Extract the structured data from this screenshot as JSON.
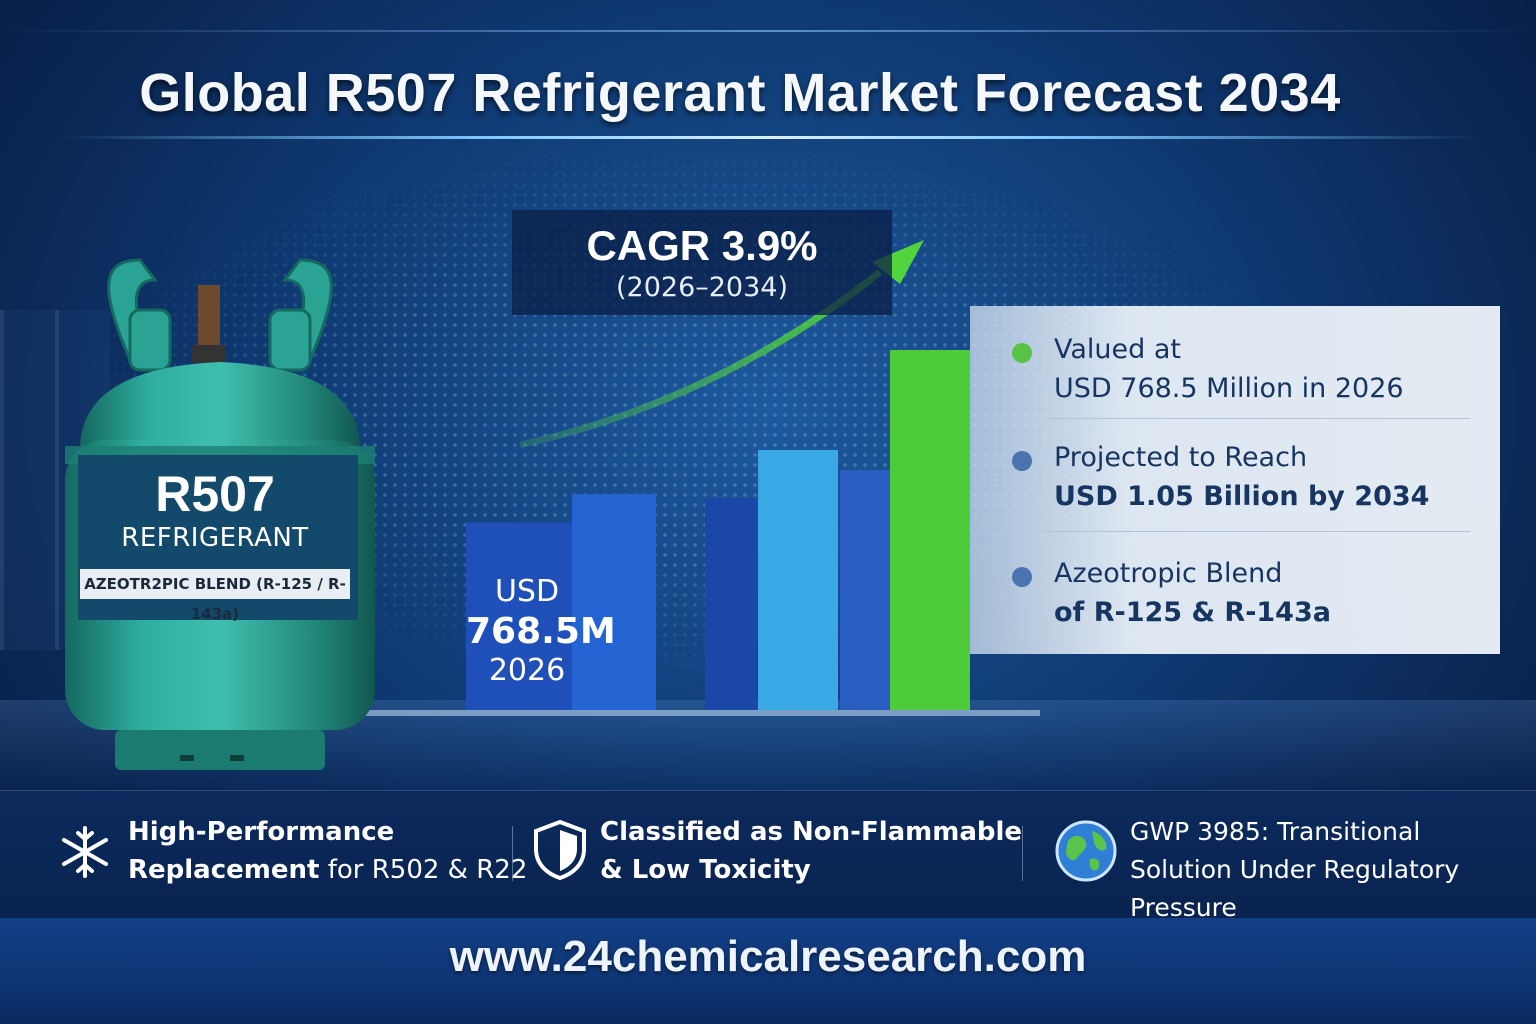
{
  "title": "Global R507 Refrigerant Market Forecast 2034",
  "cagr": {
    "main": "CAGR 3.9%",
    "period": "(2026–2034)"
  },
  "cylinder": {
    "name": "R507",
    "type": "REFRIGERANT",
    "blend": "AZEOTR2PIC BLEND (R-125 / R-143a)",
    "color": "#2aa394"
  },
  "bar_label": {
    "unit": "USD",
    "value": "768.5M",
    "year": "2026"
  },
  "chart_data": {
    "type": "bar",
    "values": [
      768.5,
      840,
      830,
      950,
      900,
      1050
    ],
    "colors": [
      "#1f4fb8",
      "#2364d2",
      "#1a47a8",
      "#39a9e6",
      "#2a5dc0",
      "#4dcb3a"
    ],
    "trend_arrow_color": "#53d43c"
  },
  "panel": {
    "items": [
      {
        "line1": "Valued at",
        "line2": "USD 768.5 Million in 2026",
        "dot_color": "#58c346"
      },
      {
        "line1": "Projected to Reach",
        "line2": "USD 1.05 Billion by 2034",
        "dot_color": "#4a73b0"
      },
      {
        "line1": "Azeotropic Blend",
        "line2": "of R-125 & R-143a",
        "dot_color": "#4a73b0"
      }
    ]
  },
  "features": [
    {
      "icon": "snowflake-icon",
      "line1": "High-Performance",
      "line2_bold": "Replacement",
      "line2_rest": " for R502 & R22"
    },
    {
      "icon": "shield-icon",
      "line1": "Classified as Non-Flammable",
      "line2": "& Low Toxicity"
    },
    {
      "icon": "globe-icon",
      "line1": "GWP 3985: Transitional",
      "line2": "Solution Under Regulatory Pressure"
    }
  ],
  "footer": "www.24chemicalresearch.com"
}
